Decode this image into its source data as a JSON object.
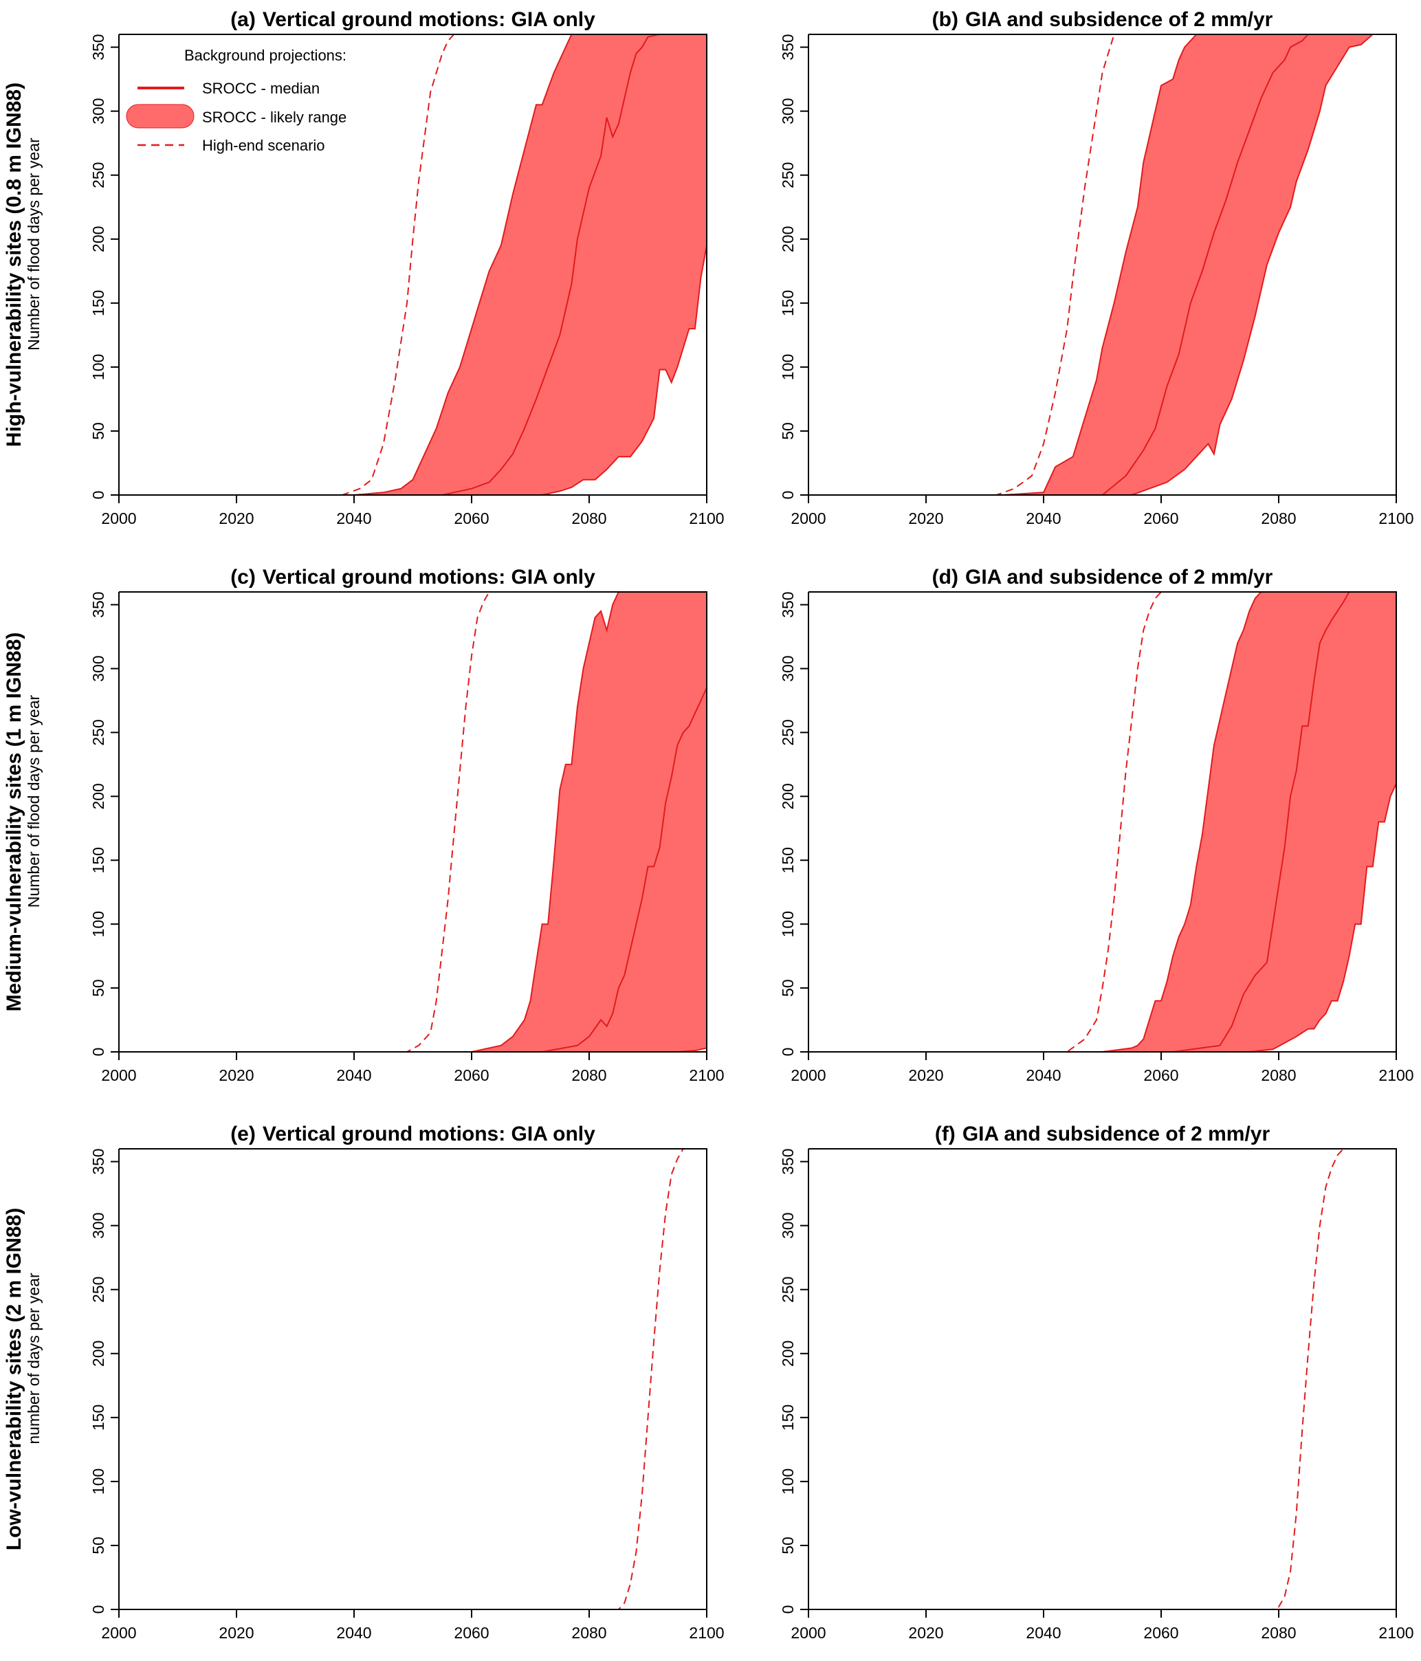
{
  "chart_data": [
    {
      "type": "area",
      "panel": "a",
      "title_tag": "(a)",
      "title": "Vertical ground motions: GIA only",
      "row_label": "High-vulnerability sites (0.8 m IGN88)",
      "ylabel": "Number of flood days per year",
      "xlim": [
        2000,
        2100
      ],
      "ylim": [
        0,
        360
      ],
      "xticks": [
        "2000",
        "2020",
        "2040",
        "2060",
        "2080",
        "2100"
      ],
      "yticks": [
        "0",
        "50",
        "100",
        "150",
        "200",
        "250",
        "300",
        "350"
      ],
      "series": [
        {
          "name": "SROCC - likely range (upper)",
          "x": [
            2040,
            2045,
            2048,
            2050,
            2052,
            2054,
            2056,
            2058,
            2060,
            2061,
            2063,
            2065,
            2067,
            2069,
            2071,
            2072,
            2074,
            2076,
            2077,
            2079,
            2080
          ],
          "y": [
            0,
            2,
            5,
            12,
            32,
            52,
            80,
            100,
            130,
            145,
            175,
            195,
            235,
            270,
            305,
            305,
            330,
            350,
            360,
            360,
            360
          ]
        },
        {
          "name": "SROCC - median",
          "x": [
            2048,
            2055,
            2060,
            2063,
            2065,
            2067,
            2069,
            2071,
            2073,
            2075,
            2077,
            2078,
            2080,
            2082,
            2083,
            2084,
            2085,
            2086,
            2087,
            2088,
            2089,
            2090,
            2092
          ],
          "y": [
            0,
            0,
            5,
            10,
            20,
            32,
            52,
            75,
            100,
            125,
            165,
            200,
            240,
            265,
            295,
            280,
            290,
            310,
            330,
            345,
            350,
            358,
            360
          ]
        },
        {
          "name": "SROCC - likely range (lower)",
          "x": [
            2060,
            2072,
            2075,
            2077,
            2079,
            2081,
            2083,
            2085,
            2087,
            2089,
            2091,
            2092,
            2093,
            2094,
            2095,
            2097,
            2098,
            2099,
            2100
          ],
          "y": [
            0,
            0,
            3,
            6,
            12,
            12,
            20,
            30,
            30,
            42,
            60,
            98,
            98,
            88,
            100,
            130,
            130,
            170,
            195
          ]
        },
        {
          "name": "High-end scenario",
          "x": [
            2038,
            2041,
            2043,
            2045,
            2047,
            2049,
            2050,
            2051,
            2052,
            2053,
            2054,
            2055,
            2056,
            2057
          ],
          "y": [
            0,
            5,
            12,
            40,
            90,
            150,
            200,
            245,
            280,
            315,
            330,
            345,
            355,
            360
          ]
        }
      ]
    },
    {
      "type": "area",
      "panel": "b",
      "title_tag": "(b)",
      "title": "GIA and subsidence of 2 mm/yr",
      "xlim": [
        2000,
        2100
      ],
      "ylim": [
        0,
        360
      ],
      "xticks": [
        "2000",
        "2020",
        "2040",
        "2060",
        "2080",
        "2100"
      ],
      "yticks": [
        "0",
        "50",
        "100",
        "150",
        "200",
        "250",
        "300",
        "350"
      ],
      "series": [
        {
          "name": "SROCC - likely range (upper)",
          "x": [
            2033,
            2040,
            2042,
            2045,
            2047,
            2049,
            2050,
            2052,
            2054,
            2056,
            2057,
            2058,
            2060,
            2062,
            2063,
            2064,
            2065,
            2066
          ],
          "y": [
            0,
            2,
            22,
            30,
            60,
            90,
            115,
            150,
            190,
            225,
            260,
            280,
            320,
            325,
            340,
            350,
            355,
            360
          ]
        },
        {
          "name": "SROCC - median",
          "x": [
            2043,
            2050,
            2054,
            2057,
            2059,
            2061,
            2063,
            2065,
            2067,
            2069,
            2071,
            2073,
            2075,
            2077,
            2079,
            2081,
            2082,
            2084,
            2085
          ],
          "y": [
            0,
            0,
            15,
            35,
            52,
            85,
            110,
            150,
            175,
            205,
            230,
            260,
            285,
            310,
            330,
            340,
            350,
            355,
            360
          ]
        },
        {
          "name": "SROCC - likely range (lower)",
          "x": [
            2055,
            2061,
            2064,
            2066,
            2068,
            2069,
            2070,
            2072,
            2074,
            2076,
            2078,
            2080,
            2082,
            2083,
            2085,
            2087,
            2088,
            2090,
            2092,
            2094,
            2096
          ],
          "y": [
            0,
            10,
            20,
            30,
            40,
            32,
            55,
            75,
            105,
            140,
            180,
            205,
            225,
            245,
            270,
            300,
            320,
            335,
            350,
            352,
            360
          ]
        },
        {
          "name": "High-end scenario",
          "x": [
            2032,
            2035,
            2038,
            2040,
            2042,
            2044,
            2045,
            2046,
            2047,
            2048,
            2049,
            2050,
            2051,
            2052
          ],
          "y": [
            0,
            5,
            15,
            40,
            80,
            130,
            170,
            205,
            240,
            270,
            300,
            330,
            345,
            360
          ]
        }
      ]
    },
    {
      "type": "area",
      "panel": "c",
      "title_tag": "(c)",
      "title": "Vertical ground motions: GIA only",
      "row_label": "Medium-vulnerability sites (1 m IGN88)",
      "ylabel": "Number of flood days per year",
      "xlim": [
        2000,
        2100
      ],
      "ylim": [
        0,
        360
      ],
      "xticks": [
        "2000",
        "2020",
        "2040",
        "2060",
        "2080",
        "2100"
      ],
      "yticks": [
        "0",
        "50",
        "100",
        "150",
        "200",
        "250",
        "300",
        "350"
      ],
      "series": [
        {
          "name": "SROCC - likely range (upper)",
          "x": [
            2060,
            2065,
            2067,
            2069,
            2070,
            2071,
            2072,
            2073,
            2074,
            2075,
            2076,
            2077,
            2078,
            2079,
            2080,
            2081,
            2082,
            2083,
            2084,
            2085,
            2086,
            2087
          ],
          "y": [
            0,
            5,
            12,
            25,
            40,
            70,
            100,
            100,
            150,
            205,
            225,
            225,
            270,
            300,
            320,
            340,
            345,
            330,
            350,
            360,
            360,
            360
          ]
        },
        {
          "name": "SROCC - median",
          "x": [
            2072,
            2078,
            2080,
            2082,
            2083,
            2084,
            2085,
            2086,
            2087,
            2088,
            2089,
            2090,
            2091,
            2092,
            2093,
            2094,
            2095,
            2096,
            2097,
            2098,
            2099,
            2100
          ],
          "y": [
            0,
            5,
            12,
            25,
            20,
            30,
            50,
            60,
            80,
            100,
            120,
            145,
            145,
            160,
            195,
            215,
            240,
            250,
            255,
            265,
            275,
            285
          ]
        },
        {
          "name": "SROCC - likely range (lower)",
          "x": [
            2090,
            2095,
            2098,
            2100
          ],
          "y": [
            0,
            0,
            1,
            3
          ]
        },
        {
          "name": "High-end scenario",
          "x": [
            2049,
            2051,
            2053,
            2054,
            2055,
            2056,
            2057,
            2058,
            2059,
            2060,
            2061,
            2062,
            2063
          ],
          "y": [
            0,
            5,
            15,
            40,
            80,
            120,
            170,
            220,
            270,
            310,
            340,
            352,
            360
          ]
        }
      ]
    },
    {
      "type": "area",
      "panel": "d",
      "title_tag": "(d)",
      "title": "GIA and subsidence of 2 mm/yr",
      "xlim": [
        2000,
        2100
      ],
      "ylim": [
        0,
        360
      ],
      "xticks": [
        "2000",
        "2020",
        "2040",
        "2060",
        "2080",
        "2100"
      ],
      "yticks": [
        "0",
        "50",
        "100",
        "150",
        "200",
        "250",
        "300",
        "350"
      ],
      "series": [
        {
          "name": "SROCC - likely range (upper)",
          "x": [
            2050,
            2055,
            2056,
            2057,
            2058,
            2059,
            2060,
            2061,
            2062,
            2063,
            2064,
            2065,
            2066,
            2067,
            2068,
            2069,
            2070,
            2071,
            2072,
            2073,
            2074,
            2075,
            2076,
            2077,
            2078
          ],
          "y": [
            0,
            3,
            5,
            10,
            25,
            40,
            40,
            55,
            75,
            90,
            100,
            115,
            145,
            170,
            205,
            240,
            260,
            280,
            300,
            320,
            330,
            345,
            355,
            360,
            360
          ]
        },
        {
          "name": "SROCC - median",
          "x": [
            2062,
            2070,
            2072,
            2074,
            2076,
            2078,
            2079,
            2080,
            2081,
            2082,
            2083,
            2084,
            2085,
            2086,
            2087,
            2088,
            2089,
            2090,
            2091,
            2092,
            2094,
            2096
          ],
          "y": [
            0,
            5,
            20,
            45,
            60,
            70,
            100,
            130,
            160,
            200,
            220,
            255,
            255,
            290,
            320,
            330,
            338,
            345,
            352,
            360,
            360,
            360
          ]
        },
        {
          "name": "SROCC - likely range (lower)",
          "x": [
            2075,
            2079,
            2081,
            2083,
            2085,
            2086,
            2087,
            2088,
            2089,
            2090,
            2091,
            2092,
            2093,
            2094,
            2095,
            2096,
            2097,
            2098,
            2099,
            2100
          ],
          "y": [
            0,
            2,
            7,
            12,
            18,
            18,
            25,
            30,
            40,
            40,
            55,
            75,
            100,
            100,
            145,
            145,
            180,
            180,
            200,
            210
          ]
        },
        {
          "name": "High-end scenario",
          "x": [
            2044,
            2047,
            2049,
            2050,
            2051,
            2052,
            2053,
            2054,
            2055,
            2056,
            2057,
            2058,
            2059,
            2060
          ],
          "y": [
            0,
            10,
            25,
            50,
            80,
            120,
            170,
            220,
            260,
            300,
            330,
            345,
            355,
            360
          ]
        }
      ]
    },
    {
      "type": "line",
      "panel": "e",
      "title_tag": "(e)",
      "title": "Vertical ground motions: GIA only",
      "row_label": "Low-vulnerability sites (2 m IGN88)",
      "ylabel": "number of days per year",
      "xlim": [
        2000,
        2100
      ],
      "ylim": [
        0,
        360
      ],
      "xticks": [
        "2000",
        "2020",
        "2040",
        "2060",
        "2080",
        "2100"
      ],
      "yticks": [
        "0",
        "50",
        "100",
        "150",
        "200",
        "250",
        "300",
        "350"
      ],
      "series": [
        {
          "name": "High-end scenario",
          "x": [
            2085,
            2086,
            2087,
            2088,
            2089,
            2090,
            2091,
            2092,
            2093,
            2094,
            2095,
            2096
          ],
          "y": [
            0,
            5,
            20,
            45,
            90,
            150,
            210,
            265,
            310,
            340,
            352,
            360
          ]
        }
      ]
    },
    {
      "type": "line",
      "panel": "f",
      "title_tag": "(f)",
      "title": "GIA and subsidence of 2 mm/yr",
      "xlim": [
        2000,
        2100
      ],
      "ylim": [
        0,
        360
      ],
      "xticks": [
        "2000",
        "2020",
        "2040",
        "2060",
        "2080",
        "2100"
      ],
      "yticks": [
        "0",
        "50",
        "100",
        "150",
        "200",
        "250",
        "300",
        "350"
      ],
      "series": [
        {
          "name": "High-end scenario",
          "x": [
            2079,
            2080,
            2081,
            2082,
            2083,
            2084,
            2085,
            2086,
            2087,
            2088,
            2089,
            2090,
            2091
          ],
          "y": [
            0,
            2,
            10,
            30,
            75,
            140,
            200,
            255,
            300,
            330,
            345,
            355,
            360
          ]
        }
      ]
    }
  ],
  "legend": {
    "title": "Background projections:",
    "items": [
      {
        "label": "SROCC - median",
        "kind": "line"
      },
      {
        "label": "SROCC - likely range",
        "kind": "band"
      },
      {
        "label": "High-end scenario",
        "kind": "dashed"
      }
    ]
  },
  "colors": {
    "line": "#e31a1c",
    "band": "#ff6b6b",
    "axis": "#000000"
  }
}
